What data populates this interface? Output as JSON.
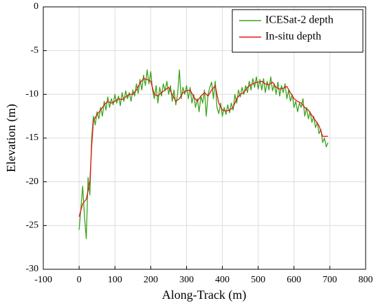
{
  "chart_data": {
    "type": "line",
    "xlabel": "Along-Track (m)",
    "ylabel": "Elevation (m)",
    "xlim": [
      -100,
      800
    ],
    "xticks": [
      -100,
      0,
      100,
      200,
      300,
      400,
      500,
      600,
      700,
      800
    ],
    "ylim": [
      -30,
      0
    ],
    "yticks": [
      -30,
      -25,
      -20,
      -15,
      -10,
      -5,
      0
    ],
    "grid": true,
    "legend": "upper right",
    "series": [
      {
        "name": "ICESat-2 depth",
        "color": "#3aa31a",
        "x": [
          0,
          5,
          10,
          15,
          20,
          25,
          30,
          35,
          40,
          45,
          50,
          55,
          60,
          65,
          70,
          75,
          80,
          85,
          90,
          95,
          100,
          105,
          110,
          115,
          120,
          125,
          130,
          135,
          140,
          145,
          150,
          155,
          160,
          165,
          170,
          175,
          180,
          185,
          190,
          195,
          200,
          205,
          210,
          215,
          220,
          225,
          230,
          235,
          240,
          245,
          250,
          255,
          260,
          265,
          270,
          275,
          280,
          285,
          290,
          295,
          300,
          305,
          310,
          315,
          320,
          325,
          330,
          335,
          340,
          345,
          350,
          355,
          360,
          365,
          370,
          375,
          380,
          385,
          390,
          395,
          400,
          405,
          410,
          415,
          420,
          425,
          430,
          435,
          440,
          445,
          450,
          455,
          460,
          465,
          470,
          475,
          480,
          485,
          490,
          495,
          500,
          505,
          510,
          515,
          520,
          525,
          530,
          535,
          540,
          545,
          550,
          555,
          560,
          565,
          570,
          575,
          580,
          585,
          590,
          595,
          600,
          605,
          610,
          615,
          620,
          625,
          630,
          635,
          640,
          645,
          650,
          655,
          660,
          665,
          670,
          675,
          680,
          685,
          690,
          695
        ],
        "values": [
          -25.5,
          -23,
          -20.5,
          -24,
          -26.5,
          -19.5,
          -21.5,
          -15,
          -12.5,
          -13.5,
          -12,
          -12.8,
          -11.5,
          -12.5,
          -10.8,
          -11.8,
          -10.3,
          -11.5,
          -10.5,
          -11.2,
          -10,
          -11,
          -10.2,
          -11.3,
          -9.8,
          -10.8,
          -9.6,
          -10.5,
          -9.8,
          -10.8,
          -9.5,
          -10.2,
          -8.8,
          -9.9,
          -8.3,
          -9.5,
          -7.8,
          -9,
          -7.2,
          -8.8,
          -7.4,
          -9.5,
          -10.5,
          -9,
          -11,
          -9.2,
          -10.2,
          -8.8,
          -9.6,
          -8.5,
          -10,
          -9,
          -10.8,
          -9.5,
          -11.2,
          -10,
          -7.2,
          -10.5,
          -9.2,
          -10,
          -9,
          -10.5,
          -9.2,
          -11,
          -10,
          -11.5,
          -10.5,
          -12,
          -10.2,
          -11,
          -9.5,
          -12.5,
          -10,
          -9.2,
          -8.6,
          -10.5,
          -8.5,
          -11.5,
          -12.2,
          -11,
          -12.5,
          -11.5,
          -12.3,
          -11.2,
          -12.1,
          -11,
          -11.8,
          -10,
          -11,
          -9.5,
          -10.3,
          -9.2,
          -10,
          -9,
          -9.8,
          -8.5,
          -9.5,
          -8.2,
          -9.2,
          -8,
          -9.4,
          -8.3,
          -9.5,
          -8.2,
          -9.8,
          -8.5,
          -9.5,
          -8,
          -9.6,
          -8.8,
          -10,
          -8.6,
          -10.2,
          -9,
          -9.8,
          -8.8,
          -10.5,
          -9.5,
          -10.8,
          -10,
          -11.5,
          -10.8,
          -12,
          -11,
          -11.5,
          -10.5,
          -12.5,
          -11.5,
          -12.8,
          -12,
          -13.2,
          -12.5,
          -13.8,
          -13.2,
          -14.5,
          -14,
          -15.5,
          -15,
          -16,
          -15.5
        ]
      },
      {
        "name": "In-situ depth",
        "color": "#e8141c",
        "x": [
          0,
          10,
          20,
          30,
          35,
          40,
          50,
          60,
          70,
          80,
          90,
          100,
          110,
          120,
          130,
          140,
          150,
          160,
          170,
          180,
          190,
          200,
          210,
          220,
          230,
          240,
          250,
          260,
          270,
          280,
          290,
          300,
          310,
          320,
          330,
          340,
          350,
          360,
          370,
          380,
          390,
          400,
          410,
          420,
          430,
          440,
          450,
          460,
          470,
          480,
          490,
          500,
          510,
          520,
          530,
          540,
          550,
          560,
          570,
          580,
          590,
          600,
          610,
          620,
          630,
          640,
          650,
          660,
          670,
          680,
          690,
          695
        ],
        "values": [
          -24,
          -22.5,
          -22,
          -20,
          -16,
          -13,
          -12.3,
          -11.8,
          -11.2,
          -10.8,
          -11,
          -10.8,
          -10.5,
          -10.6,
          -10.3,
          -10,
          -10,
          -9.5,
          -8.7,
          -8.2,
          -8.3,
          -8.5,
          -10,
          -10.2,
          -9.8,
          -9.5,
          -9.2,
          -10,
          -10.8,
          -10.5,
          -9.8,
          -9.6,
          -9.5,
          -10.3,
          -10.8,
          -10.2,
          -9.8,
          -10.2,
          -9.5,
          -9,
          -11,
          -11.8,
          -11.9,
          -11.8,
          -11.5,
          -10.5,
          -10,
          -9.8,
          -9.2,
          -8.9,
          -8.7,
          -8.6,
          -8.5,
          -8.8,
          -8.9,
          -8.6,
          -9.2,
          -9.4,
          -9.3,
          -9.1,
          -9.8,
          -10.5,
          -10.8,
          -11,
          -11.5,
          -11.8,
          -12.4,
          -13,
          -13.6,
          -14.8,
          -14.8,
          -14.8
        ]
      }
    ]
  }
}
